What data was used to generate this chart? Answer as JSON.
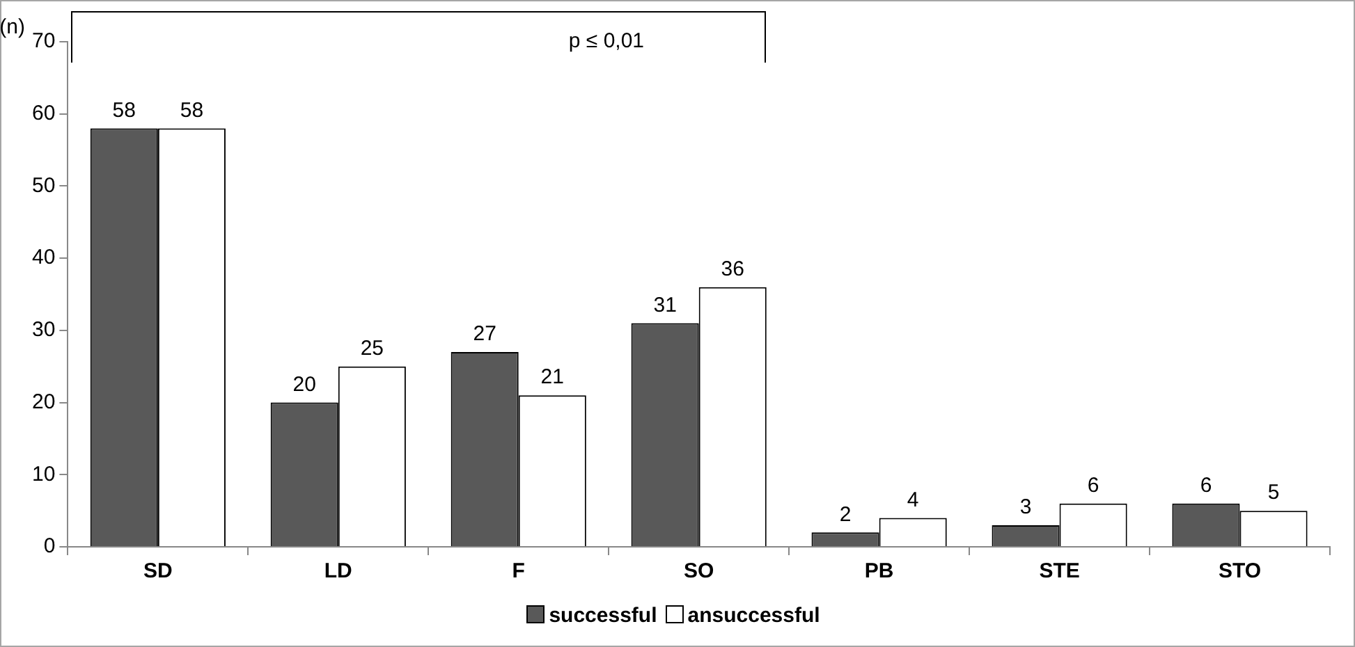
{
  "chart_data": {
    "type": "bar",
    "ylabel": "(n)",
    "categories": [
      "SD",
      "LD",
      "F",
      "SO",
      "PB",
      "STE",
      "STO"
    ],
    "series": [
      {
        "name": "successful",
        "color": "#595959",
        "values": [
          58,
          20,
          27,
          31,
          2,
          3,
          6
        ]
      },
      {
        "name": "ansuccessful",
        "color": "#ffffff",
        "values": [
          58,
          25,
          21,
          36,
          4,
          6,
          5
        ]
      }
    ],
    "ylim": [
      0,
      70
    ],
    "yticks": [
      0,
      10,
      20,
      30,
      40,
      50,
      60,
      70
    ],
    "grid": false,
    "legend": "bottom",
    "data_labels": true,
    "annotations": [
      "p ≤ 0,01"
    ]
  }
}
